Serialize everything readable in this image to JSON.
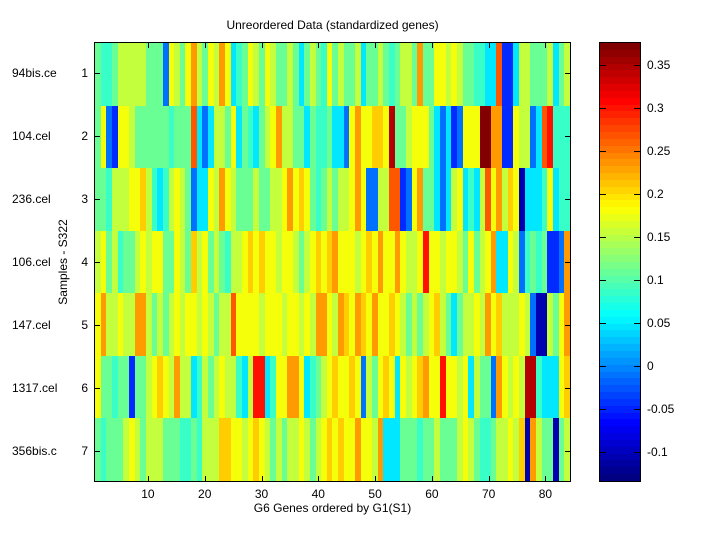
{
  "figure": {
    "title": "Unreordered Data (standardized genes)",
    "xlabel": "G6 Genes ordered by G1(S1)",
    "ylabel": "Samples - S322",
    "background": "#ffffff"
  },
  "axes": {
    "x_ticks": [
      10,
      20,
      30,
      40,
      50,
      60,
      70,
      80
    ],
    "y_ticks": [
      "1",
      "2",
      "3",
      "4",
      "5",
      "6",
      "7"
    ],
    "sample_labels": [
      "94bis.ce",
      "104.cel",
      "236.cel",
      "106.cel",
      "147.cel",
      "1317.cel",
      "356bis.c"
    ]
  },
  "colorbar": {
    "tick_labels": [
      "0.35",
      "0.3",
      "0.25",
      "0.2",
      "0.15",
      "0.1",
      "0.05",
      "0",
      "-0.05",
      "-0.1"
    ],
    "tick_values": [
      0.35,
      0.3,
      0.25,
      0.2,
      0.15,
      0.1,
      0.05,
      0,
      -0.05,
      -0.1
    ],
    "steps": 64
  },
  "chart_data": {
    "type": "heatmap",
    "title": "Unreordered Data (standardized genes)",
    "xlabel": "G6 Genes ordered by G1(S1)",
    "ylabel": "Samples - S322",
    "colormap": "jet",
    "clim": [
      -0.135,
      0.377
    ],
    "n_rows": 7,
    "n_cols": 84,
    "x_tick_values": [
      10,
      20,
      30,
      40,
      50,
      60,
      70,
      80
    ],
    "row_labels": [
      "94bis.ce",
      "104.cel",
      "236.cel",
      "106.cel",
      "147.cel",
      "1317.cel",
      "356bis.c"
    ],
    "value_map": {
      "N": -0.11,
      "B": -0.05,
      "S": -0.015,
      "C": 0.045,
      "T": 0.085,
      "G": 0.11,
      "L": 0.155,
      "Y": 0.18,
      "D": 0.21,
      "O": 0.235,
      "V": 0.27,
      "R": 0.305,
      "M": 0.35,
      "X": 0.375
    },
    "rows": [
      "GTTGLLLLLGGGSYLGYOLGYLOYCTGYLGYLGGLGCGLGTYGLGGLCGGLGTGLLGOGGYYLYLGGTTCCVBBCLLGGGLCGL",
      "GYSBYYLGGGGGGTGGGVCSCLLGYCGTCGLYOLLGGCGTTGCCSYOYYDDYMGGLYYYGCSCBSYYYXXOOBBYLLSCVRTTT",
      "GGTLLLYYDLTCTLYLGSCCYLOYLGGGLGGLLYOYDYGTGLGLLYOYSSLLVVBSYOGGCSCLYCTCLVYOLDYNCCCTYCTT",
      "LYGLTGGLYLYYGGYLGDLYGLGTLLYDYDYYLYYLGLYDYDOYYYLYDYOYYOYLLYRYYLYYLGYGLYOCCYLSTGTGBBSO",
      "YOLLYLLOOLGLGLYLYYLYLGLLVYYYYLYYYLYYLYLOOYLODYODYOYYDYLGLGLYDLGCGLLYLOYDLLLYLSNNLGYO",
      "YGGTGGBGGLYDYLOLLCTLGLYLLTCLRRCTYYOOYCTGLYDYYDYSLGYDYCYLYDOYYRYYLYCLGGSOYLYLMMTCCCYD",
      "GTGGGLYLGLLLGGGTTGTLLLDDYYLYDYLGLGLLYLGLYDYDYYOYYLOCCCGGGTGGLGGGLYLGTTGLLYLDNOLGGNGL"
    ]
  }
}
